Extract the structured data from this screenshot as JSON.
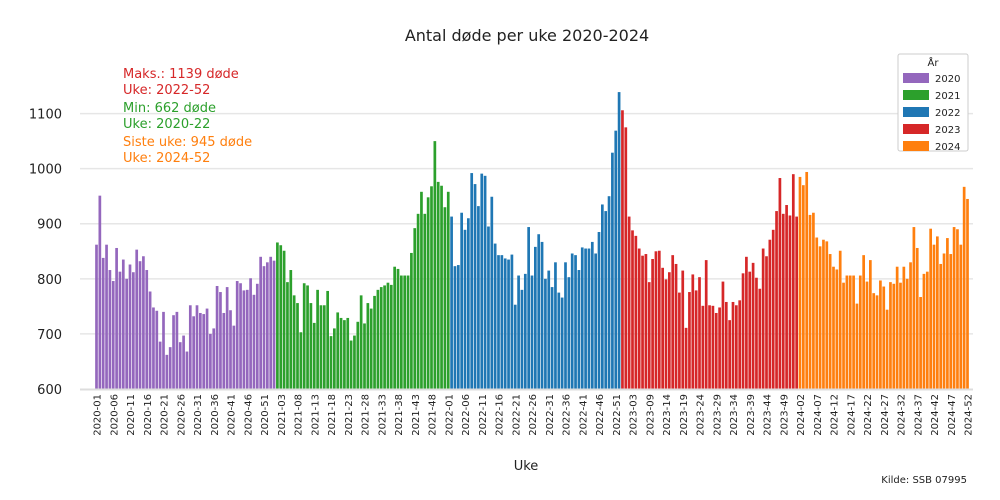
{
  "chart_data": {
    "type": "bar",
    "title": "Antal døde per uke 2020-2024",
    "xlabel": "Uke",
    "ylabel": "",
    "ylim": [
      600,
      1190
    ],
    "yticks": [
      600,
      700,
      800,
      900,
      1000,
      1100
    ],
    "grid": "horizontal",
    "legend_position": "top-right",
    "legend_title": "År",
    "source": "Kilde: SSB 07995",
    "annotations": [
      {
        "text": "Maks.: 1139 døde",
        "color": "#d62728"
      },
      {
        "text": "Uke: 2022-52",
        "color": "#d62728"
      },
      {
        "text": "Min: 662 døde",
        "color": "#2ca02c"
      },
      {
        "text": "Uke: 2020-22",
        "color": "#2ca02c"
      },
      {
        "text": "Siste uke: 945 døde",
        "color": "#ff7f0e"
      },
      {
        "text": "Uke: 2024-52",
        "color": "#ff7f0e"
      }
    ],
    "xtick_labels": [
      "2020-01",
      "2020-06",
      "2020-11",
      "2020-16",
      "2020-21",
      "2020-26",
      "2020-31",
      "2020-36",
      "2020-41",
      "2020-46",
      "2020-51",
      "2021-03",
      "2021-08",
      "2021-13",
      "2021-18",
      "2021-23",
      "2021-28",
      "2021-33",
      "2021-38",
      "2021-43",
      "2021-48",
      "2022-01",
      "2022-06",
      "2022-11",
      "2022-16",
      "2022-21",
      "2022-26",
      "2022-31",
      "2022-36",
      "2022-41",
      "2022-46",
      "2022-51",
      "2023-03",
      "2023-09",
      "2023-14",
      "2023-19",
      "2023-24",
      "2023-29",
      "2023-34",
      "2023-39",
      "2023-44",
      "2023-49",
      "2024-02",
      "2024-07",
      "2024-12",
      "2024-17",
      "2024-22",
      "2024-27",
      "2024-32",
      "2024-37",
      "2024-42",
      "2024-47",
      "2024-52"
    ],
    "series": [
      {
        "name": "2020",
        "color": "#9467bd",
        "values": [
          862,
          951,
          838,
          862,
          816,
          796,
          856,
          813,
          835,
          800,
          826,
          812,
          853,
          832,
          841,
          816,
          777,
          748,
          742,
          686,
          740,
          662,
          676,
          734,
          740,
          685,
          697,
          668,
          752,
          732,
          752,
          738,
          736,
          746,
          700,
          710,
          787,
          776,
          738,
          785,
          743,
          715,
          796,
          792,
          779,
          780,
          801,
          771,
          791,
          840,
          823,
          830,
          840,
          833
        ]
      },
      {
        "name": "2021",
        "color": "#2ca02c",
        "values": [
          866,
          861,
          851,
          794,
          816,
          770,
          756,
          703,
          792,
          788,
          756,
          720,
          780,
          752,
          752,
          778,
          696,
          710,
          739,
          729,
          725,
          729,
          688,
          697,
          722,
          770,
          719,
          756,
          746,
          769,
          780,
          785,
          788,
          793,
          789,
          822,
          818,
          806,
          806,
          806,
          847,
          892,
          918,
          958,
          918,
          948,
          968,
          1050,
          976,
          969,
          930,
          958
        ]
      },
      {
        "name": "2022",
        "color": "#1f77b4",
        "values": [
          913,
          823,
          825,
          920,
          889,
          910,
          992,
          972,
          932,
          991,
          987,
          895,
          949,
          864,
          843,
          843,
          837,
          835,
          844,
          753,
          806,
          780,
          809,
          894,
          806,
          858,
          881,
          867,
          800,
          815,
          785,
          830,
          775,
          766,
          830,
          803,
          846,
          843,
          816,
          857,
          855,
          855,
          867,
          846,
          885,
          935,
          923,
          950,
          1029,
          1069,
          1139
        ]
      },
      {
        "name": "2023",
        "color": "#d62728",
        "values": [
          1106,
          1075,
          913,
          888,
          878,
          855,
          842,
          845,
          794,
          836,
          850,
          851,
          820,
          799,
          812,
          843,
          827,
          775,
          815,
          711,
          776,
          808,
          779,
          803,
          751,
          834,
          752,
          751,
          738,
          748,
          795,
          758,
          725,
          758,
          752,
          761,
          810,
          840,
          813,
          829,
          802,
          782,
          855,
          841,
          871,
          889,
          923,
          983,
          918,
          934,
          915,
          990,
          913
        ]
      },
      {
        "name": "2024",
        "color": "#ff7f0e",
        "values": [
          985,
          970,
          994,
          916,
          920,
          875,
          859,
          871,
          868,
          845,
          822,
          817,
          851,
          793,
          806,
          806,
          806,
          755,
          806,
          843,
          795,
          834,
          774,
          770,
          797,
          786,
          744,
          794,
          791,
          822,
          793,
          822,
          800,
          830,
          894,
          856,
          767,
          809,
          813,
          891,
          862,
          877,
          827,
          846,
          874,
          845,
          894,
          890,
          862,
          967,
          945
        ]
      }
    ]
  }
}
